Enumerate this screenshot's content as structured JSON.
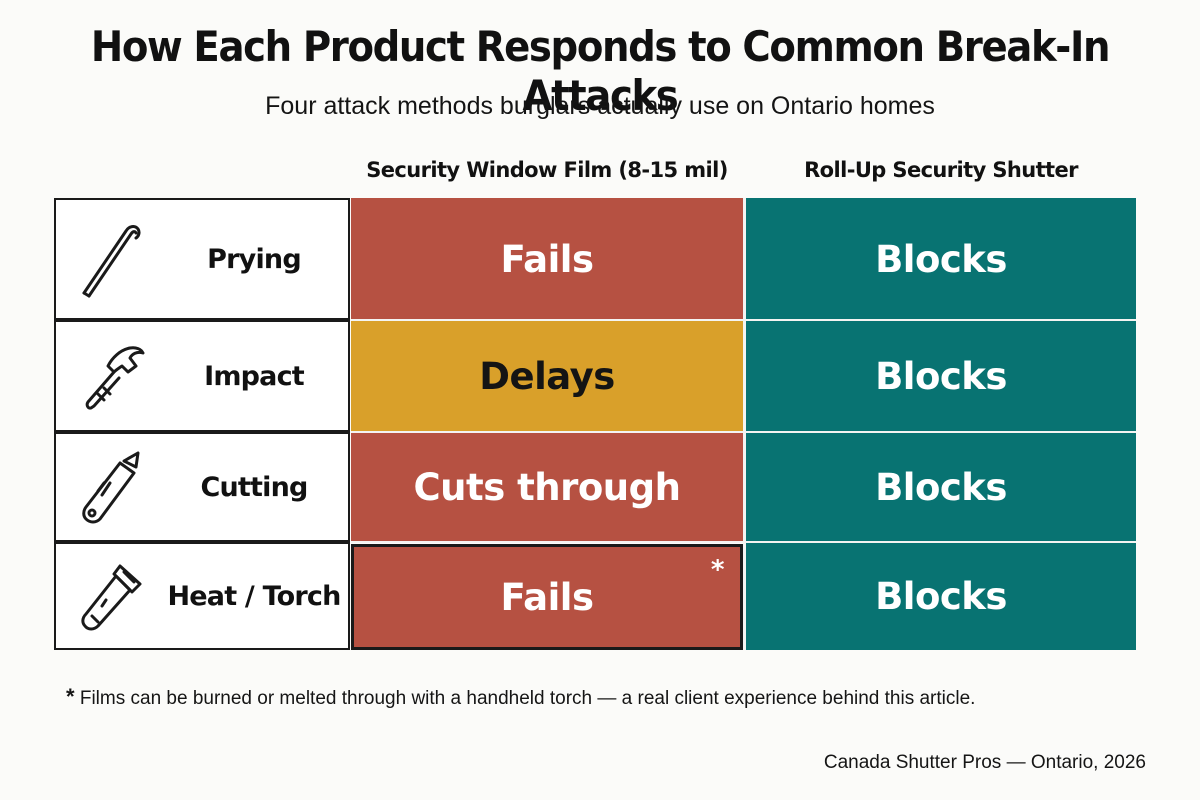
{
  "title": "How Each Product Responds to Common Break-In Attacks",
  "subtitle": "Four attack methods burglars actually use on Ontario homes",
  "columns": {
    "film": "Security Window Film (8-15 mil)",
    "shutter": "Roll-Up Security Shutter"
  },
  "rows": [
    {
      "attack": "Prying",
      "icon": "crowbar-icon",
      "film": "Fails",
      "film_status": "fail",
      "shutter": "Blocks",
      "asterisk": ""
    },
    {
      "attack": "Impact",
      "icon": "hammer-icon",
      "film": "Delays",
      "film_status": "delay",
      "shutter": "Blocks",
      "asterisk": ""
    },
    {
      "attack": "Cutting",
      "icon": "utility-knife-icon",
      "film": "Cuts through",
      "film_status": "fail",
      "shutter": "Blocks",
      "asterisk": ""
    },
    {
      "attack": "Heat / Torch",
      "icon": "torch-icon",
      "film": "Fails",
      "film_status": "fail",
      "shutter": "Blocks",
      "asterisk": "*"
    }
  ],
  "footnote": {
    "marker": "*",
    "text": "Films can be burned or melted through with a handheld torch — a real client experience behind this article."
  },
  "credit": "Canada Shutter Pros — Ontario, 2026",
  "colors": {
    "fail": "#b65142",
    "delay": "#d9a02a",
    "block": "#087372"
  }
}
